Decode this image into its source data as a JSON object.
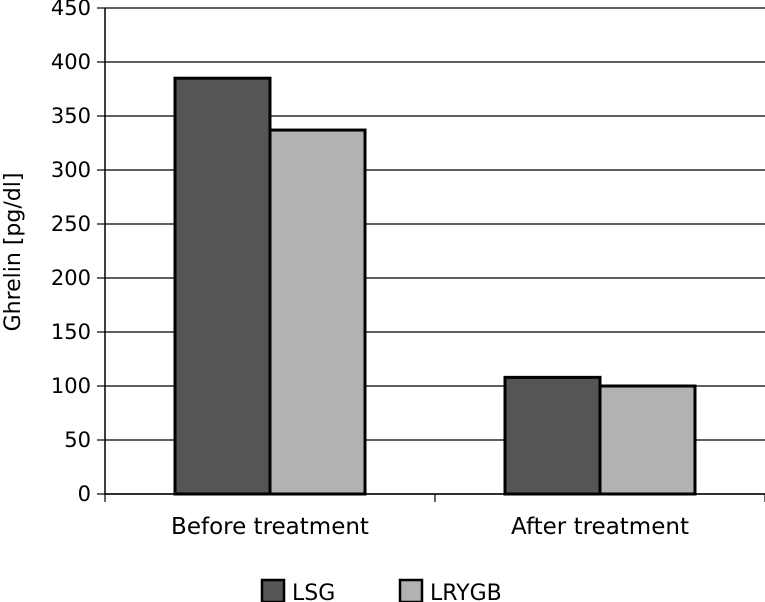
{
  "chart_data": {
    "type": "bar",
    "categories": [
      "Before treatment",
      "After treatment"
    ],
    "series": [
      {
        "name": "LSG",
        "values": [
          385,
          108
        ],
        "color": "#555555"
      },
      {
        "name": "LRYGB",
        "values": [
          337,
          100
        ],
        "color": "#b2b2b2"
      }
    ],
    "ylabel": "Ghrelin [pg/dl]",
    "ylim": [
      0,
      450
    ],
    "yticks": [
      0,
      50,
      100,
      150,
      200,
      250,
      300,
      350,
      400,
      450
    ],
    "grid": true,
    "legend": "bottom"
  }
}
